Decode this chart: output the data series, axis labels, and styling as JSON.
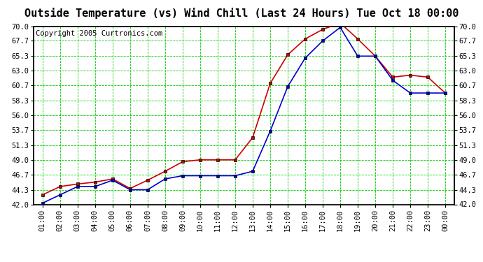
{
  "title": "Outside Temperature (vs) Wind Chill (Last 24 Hours) Tue Oct 18 00:00",
  "copyright": "Copyright 2005 Curtronics.com",
  "x_labels": [
    "01:00",
    "02:00",
    "03:00",
    "04:00",
    "05:00",
    "06:00",
    "07:00",
    "08:00",
    "09:00",
    "10:00",
    "11:00",
    "12:00",
    "13:00",
    "14:00",
    "15:00",
    "16:00",
    "17:00",
    "18:00",
    "19:00",
    "20:00",
    "21:00",
    "22:00",
    "23:00",
    "00:00"
  ],
  "y_ticks": [
    42.0,
    44.3,
    46.7,
    49.0,
    51.3,
    53.7,
    56.0,
    58.3,
    60.7,
    63.0,
    65.3,
    67.7,
    70.0
  ],
  "ylim": [
    42.0,
    70.0
  ],
  "red_line": [
    43.5,
    44.8,
    45.2,
    45.5,
    46.0,
    44.5,
    45.8,
    47.2,
    48.7,
    49.0,
    49.0,
    49.0,
    52.5,
    61.0,
    65.5,
    68.0,
    69.5,
    70.5,
    68.0,
    65.3,
    62.0,
    62.3,
    62.0,
    59.5
  ],
  "blue_line": [
    42.2,
    43.5,
    44.8,
    44.8,
    45.8,
    44.3,
    44.3,
    46.0,
    46.5,
    46.5,
    46.5,
    46.5,
    47.2,
    53.5,
    60.5,
    65.0,
    67.7,
    69.8,
    65.3,
    65.3,
    61.5,
    59.5,
    59.5,
    59.5
  ],
  "red_color": "#cc0000",
  "blue_color": "#0000cc",
  "bg_color": "#ffffff",
  "grid_color": "#00cc00",
  "plot_bg_color": "#ffffff",
  "border_color": "#000000",
  "marker": "s",
  "marker_size": 2.5,
  "line_width": 1.2,
  "title_fontsize": 11,
  "tick_fontsize": 7.5,
  "copyright_fontsize": 7.5,
  "fig_width": 6.9,
  "fig_height": 3.75,
  "dpi": 100
}
